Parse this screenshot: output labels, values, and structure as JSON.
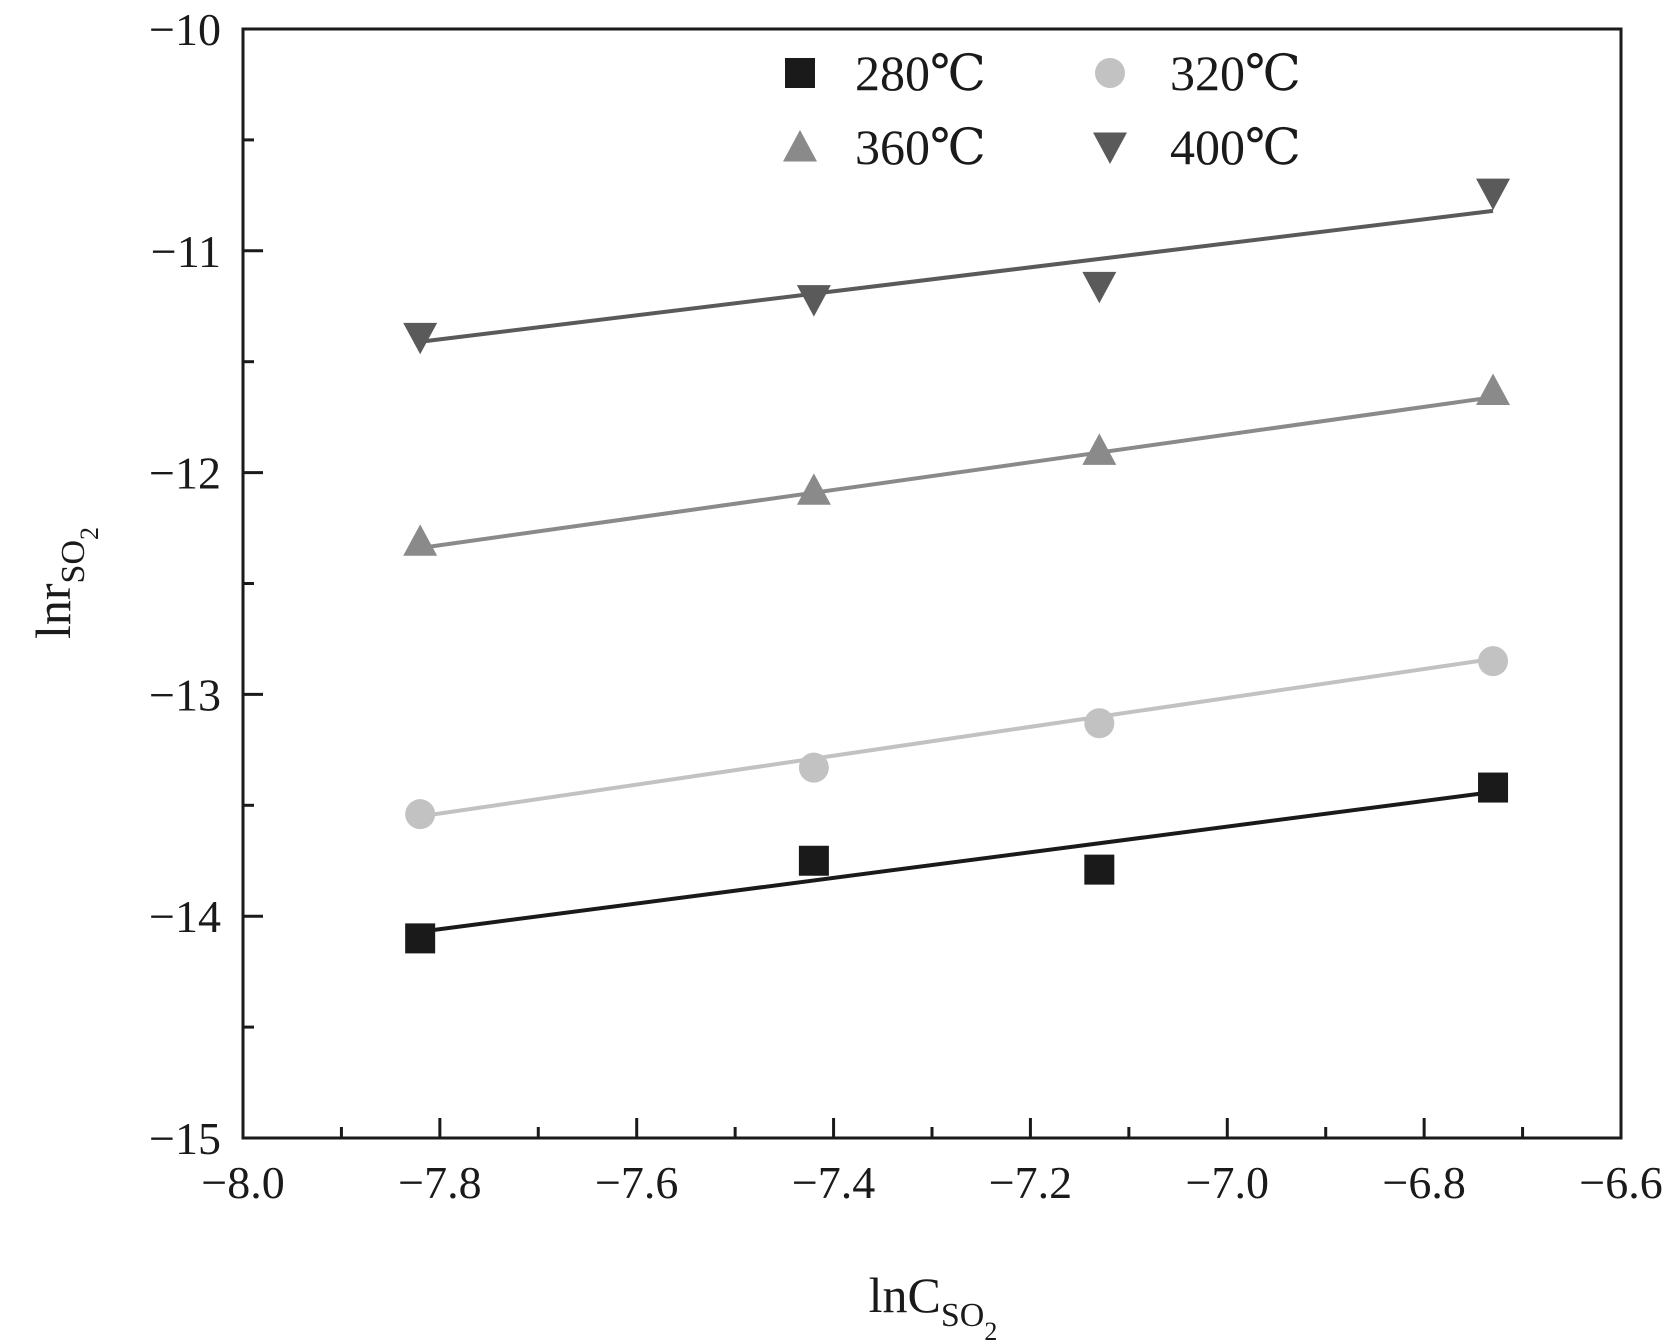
{
  "chart_data": {
    "type": "scatter",
    "xlabel": {
      "main": "lnC",
      "sub": "SO",
      "subsub": "2"
    },
    "ylabel": {
      "main": "lnr",
      "sub": "SO",
      "subsub": "2"
    },
    "xlim": [
      -8.0,
      -6.6
    ],
    "ylim": [
      -15,
      -10
    ],
    "x_ticks": [
      -8.0,
      -7.8,
      -7.6,
      -7.4,
      -7.2,
      -7.0,
      -6.8,
      -6.6
    ],
    "x_tick_labels": [
      "−8.0",
      "−7.8",
      "−7.6",
      "−7.4",
      "−7.2",
      "−7.0",
      "−6.8",
      "−6.6"
    ],
    "y_ticks": [
      -10,
      -11,
      -12,
      -13,
      -14,
      -15
    ],
    "y_tick_labels": [
      "−10",
      "−11",
      "−12",
      "−13",
      "−14",
      "−15"
    ],
    "legend_position": "top-right",
    "series": [
      {
        "name": "280℃",
        "marker": "square",
        "color": "#1a1a1a",
        "x": [
          -7.82,
          -7.42,
          -7.13,
          -6.73
        ],
        "y": [
          -14.1,
          -13.75,
          -13.79,
          -13.42
        ],
        "fit": {
          "x": [
            -7.82,
            -6.73
          ],
          "y": [
            -14.07,
            -13.44
          ]
        }
      },
      {
        "name": "320℃",
        "marker": "circle",
        "color": "#c2c2c2",
        "x": [
          -7.82,
          -7.42,
          -7.13,
          -6.73
        ],
        "y": [
          -13.54,
          -13.33,
          -13.13,
          -12.85
        ],
        "fit": {
          "x": [
            -7.82,
            -6.73
          ],
          "y": [
            -13.55,
            -12.84
          ]
        }
      },
      {
        "name": "360℃",
        "marker": "triangle-up",
        "color": "#8a8a8a",
        "x": [
          -7.82,
          -7.42,
          -7.13,
          -6.73
        ],
        "y": [
          -12.31,
          -12.08,
          -11.9,
          -11.63
        ],
        "fit": {
          "x": [
            -7.82,
            -6.73
          ],
          "y": [
            -12.34,
            -11.66
          ]
        }
      },
      {
        "name": "400℃",
        "marker": "triangle-down",
        "color": "#5a5a5a",
        "x": [
          -7.82,
          -7.42,
          -7.13,
          -6.73
        ],
        "y": [
          -11.39,
          -11.22,
          -11.16,
          -10.74
        ],
        "fit": {
          "x": [
            -7.82,
            -6.73
          ],
          "y": [
            -11.41,
            -10.82
          ]
        }
      }
    ]
  }
}
